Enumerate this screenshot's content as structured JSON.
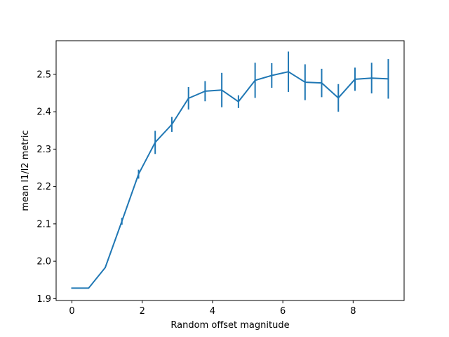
{
  "chart_data": {
    "type": "line",
    "title": "",
    "xlabel": "Random offset magnitude",
    "ylabel": "mean l1/l2 metric",
    "xlim": [
      -0.45,
      9.45
    ],
    "ylim": [
      1.895,
      2.59
    ],
    "xticks": [
      0,
      2,
      4,
      6,
      8
    ],
    "xtick_labels": [
      "0",
      "2",
      "4",
      "6",
      "8"
    ],
    "yticks": [
      1.9,
      2.0,
      2.1,
      2.2,
      2.3,
      2.4,
      2.5
    ],
    "ytick_labels": [
      "1.9",
      "2.0",
      "2.1",
      "2.2",
      "2.3",
      "2.4",
      "2.5"
    ],
    "grid": false,
    "legend": "none",
    "color": "#1f77b4",
    "series": [
      {
        "x": [
          0,
          0.474,
          0.947,
          1.421,
          1.895,
          2.368,
          2.842,
          3.316,
          3.789,
          4.263,
          4.737,
          5.211,
          5.684,
          6.158,
          6.632,
          7.105,
          7.579,
          8.053,
          8.526,
          9.0
        ],
        "y": [
          1.928,
          1.928,
          1.983,
          2.107,
          2.233,
          2.318,
          2.366,
          2.436,
          2.455,
          2.458,
          2.427,
          2.484,
          2.497,
          2.507,
          2.479,
          2.477,
          2.437,
          2.487,
          2.49,
          2.488
        ],
        "yerr": [
          0.001,
          0.0,
          0.001,
          0.009,
          0.012,
          0.031,
          0.02,
          0.03,
          0.027,
          0.046,
          0.017,
          0.047,
          0.033,
          0.054,
          0.048,
          0.038,
          0.037,
          0.031,
          0.041,
          0.053
        ]
      }
    ]
  }
}
